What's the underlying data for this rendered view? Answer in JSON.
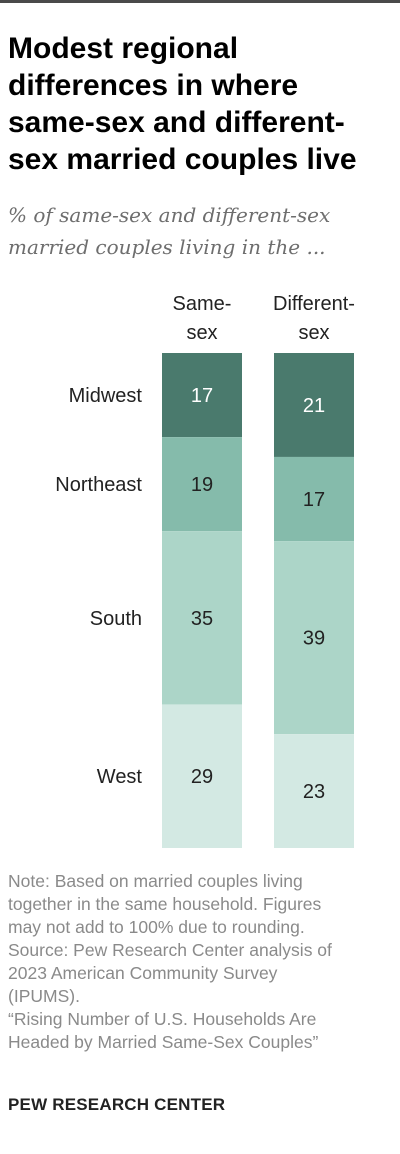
{
  "title": "Modest regional differences in where same-sex and different-sex married couples live",
  "subtitle": "% of same-sex and different-sex married couples living in the ...",
  "chart_data": {
    "type": "bar",
    "stacked": true,
    "categories": [
      "Same-sex",
      "Different-sex"
    ],
    "segments": [
      "Midwest",
      "Northeast",
      "South",
      "West"
    ],
    "series": [
      {
        "name": "Midwest",
        "values": [
          17,
          21
        ],
        "color": "#4a7a6d"
      },
      {
        "name": "Northeast",
        "values": [
          19,
          17
        ],
        "color": "#85bbab"
      },
      {
        "name": "South",
        "values": [
          35,
          39
        ],
        "color": "#acd5c8"
      },
      {
        "name": "West",
        "values": [
          29,
          23
        ],
        "color": "#d3e9e3"
      }
    ],
    "label_colors": {
      "Midwest": "#ffffff",
      "Northeast": "#222222",
      "South": "#222222",
      "West": "#222222"
    }
  },
  "columns": {
    "same_sex_line1": "Same-",
    "same_sex_line2": "sex",
    "different_sex_line1": "Different-",
    "different_sex_line2": "sex"
  },
  "notes": {
    "line1": "Note: Based on married couples living",
    "line2": "together in the same household. Figures",
    "line3": "may not add to 100% due to rounding.",
    "line4": "Source: Pew Research Center analysis of",
    "line5": "2023 American Community Survey",
    "line6": "(IPUMS).",
    "line7": "“Rising Number of U.S. Households Are",
    "line8": "Headed by Married Same-Sex Couples”"
  },
  "brand": "PEW RESEARCH CENTER"
}
